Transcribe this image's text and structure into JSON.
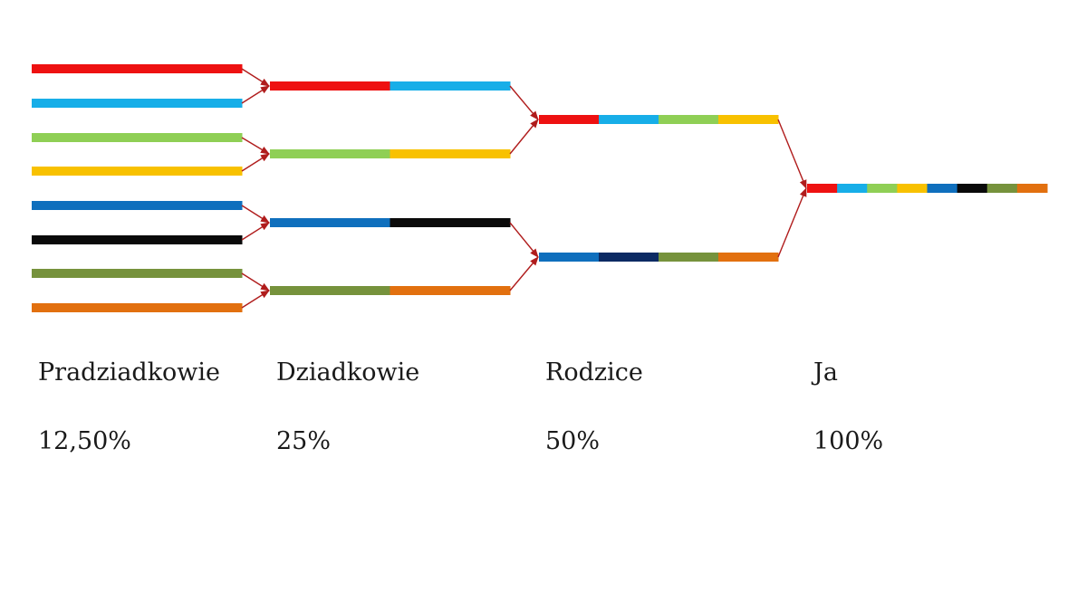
{
  "colors": {
    "red": "#ee1111",
    "light_blue": "#17aee8",
    "light_green": "#8fcf55",
    "yellow": "#f8c100",
    "blue": "#0f6fbd",
    "black": "#0a0a0a",
    "navy": "#0c2a63",
    "olive": "#76923c",
    "orange": "#e2700f",
    "arrow": "#b01c1c"
  },
  "generations": [
    {
      "label": "Pradziadkowie",
      "percent": "12,50%"
    },
    {
      "label": "Dziadkowie",
      "percent": "25%"
    },
    {
      "label": "Rodzice",
      "percent": "50%"
    },
    {
      "label": "Ja",
      "percent": "100%"
    }
  ],
  "bars": {
    "great_grandparents": [
      [
        "red"
      ],
      [
        "light_blue"
      ],
      [
        "light_green"
      ],
      [
        "yellow"
      ],
      [
        "blue"
      ],
      [
        "black"
      ],
      [
        "olive"
      ],
      [
        "orange"
      ]
    ],
    "grandparents": [
      [
        "red",
        "light_blue"
      ],
      [
        "light_green",
        "yellow"
      ],
      [
        "blue",
        "black"
      ],
      [
        "olive",
        "orange"
      ]
    ],
    "parents": [
      [
        "red",
        "light_blue",
        "light_green",
        "yellow"
      ],
      [
        "blue",
        "navy",
        "olive",
        "orange"
      ]
    ],
    "me": [
      [
        "red",
        "light_blue",
        "light_green",
        "yellow",
        "blue",
        "black",
        "olive",
        "orange"
      ]
    ]
  }
}
